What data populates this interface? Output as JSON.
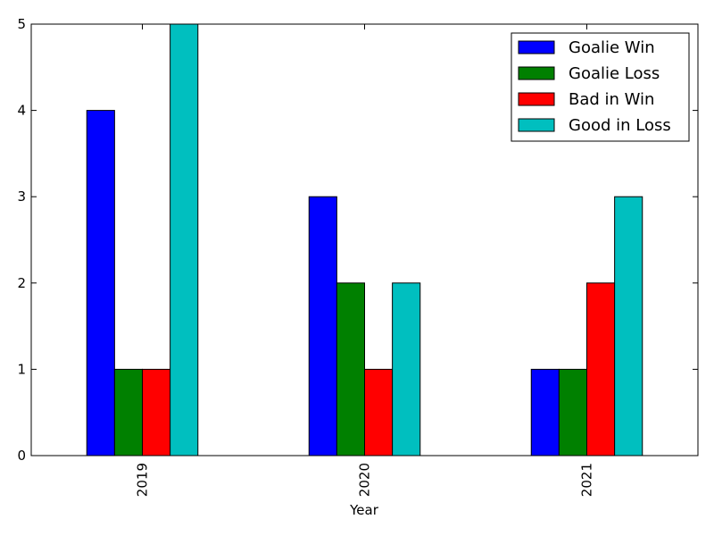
{
  "chart_data": {
    "type": "bar",
    "categories": [
      "2019",
      "2020",
      "2021"
    ],
    "series": [
      {
        "name": "Goalie Win",
        "values": [
          4,
          3,
          1
        ],
        "color": "#0000ff"
      },
      {
        "name": "Goalie Loss",
        "values": [
          1,
          2,
          1
        ],
        "color": "#008000"
      },
      {
        "name": "Bad in Win",
        "values": [
          1,
          1,
          2
        ],
        "color": "#ff0000"
      },
      {
        "name": "Good in Loss",
        "values": [
          5,
          2,
          3
        ],
        "color": "#00bfbf"
      }
    ],
    "title": "",
    "xlabel": "Year",
    "ylabel": "",
    "ylim": [
      0,
      5
    ],
    "yticks": [
      0,
      1,
      2,
      3,
      4,
      5
    ],
    "grid": false,
    "legend_position": "top-right",
    "x_tick_rotation": "vertical"
  }
}
